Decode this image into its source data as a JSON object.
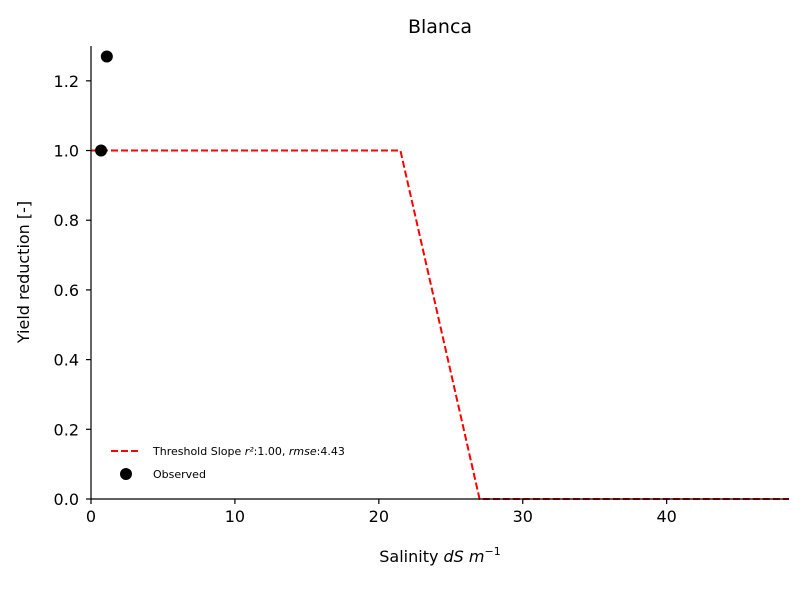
{
  "chart_data": {
    "type": "line",
    "title": "Blanca",
    "xlabel": "Salinity dS m⁻¹",
    "ylabel": "Yield reduction [-]",
    "xlim": [
      0,
      48.5
    ],
    "ylim": [
      0,
      1.3
    ],
    "xticks": [
      0,
      10,
      20,
      30,
      40
    ],
    "yticks": [
      0.0,
      0.2,
      0.4,
      0.6,
      0.8,
      1.0,
      1.2
    ],
    "xtick_labels": [
      "0",
      "10",
      "20",
      "30",
      "40"
    ],
    "ytick_labels": [
      "0.0",
      "0.2",
      "0.4",
      "0.6",
      "0.8",
      "1.0",
      "1.2"
    ],
    "grid": false,
    "legend_position": "lower-left",
    "series": [
      {
        "name": "Threshold Slope r²:1.00, rmse:4.43",
        "kind": "line",
        "style": "dashed",
        "color": "#ff0000",
        "x": [
          0,
          21.5,
          27.0,
          48.5
        ],
        "y": [
          1.0,
          1.0,
          0.0,
          0.0
        ]
      },
      {
        "name": "Observed",
        "kind": "scatter",
        "color": "#000000",
        "x": [
          0.7,
          1.1
        ],
        "y": [
          1.0,
          1.27
        ]
      }
    ],
    "legend": {
      "line_label_prefix": "Threshold Slope ",
      "line_label_r2": "r²",
      "line_label_mid": ":1.00, ",
      "line_label_rmse": "rmse",
      "line_label_suffix": ":4.43",
      "scatter_label": "Observed"
    },
    "axis_text": {
      "x_prefix": "Salinity ",
      "x_dS": "dS",
      "x_m": "m",
      "x_exp": "−1",
      "y": "Yield reduction [-]"
    }
  }
}
